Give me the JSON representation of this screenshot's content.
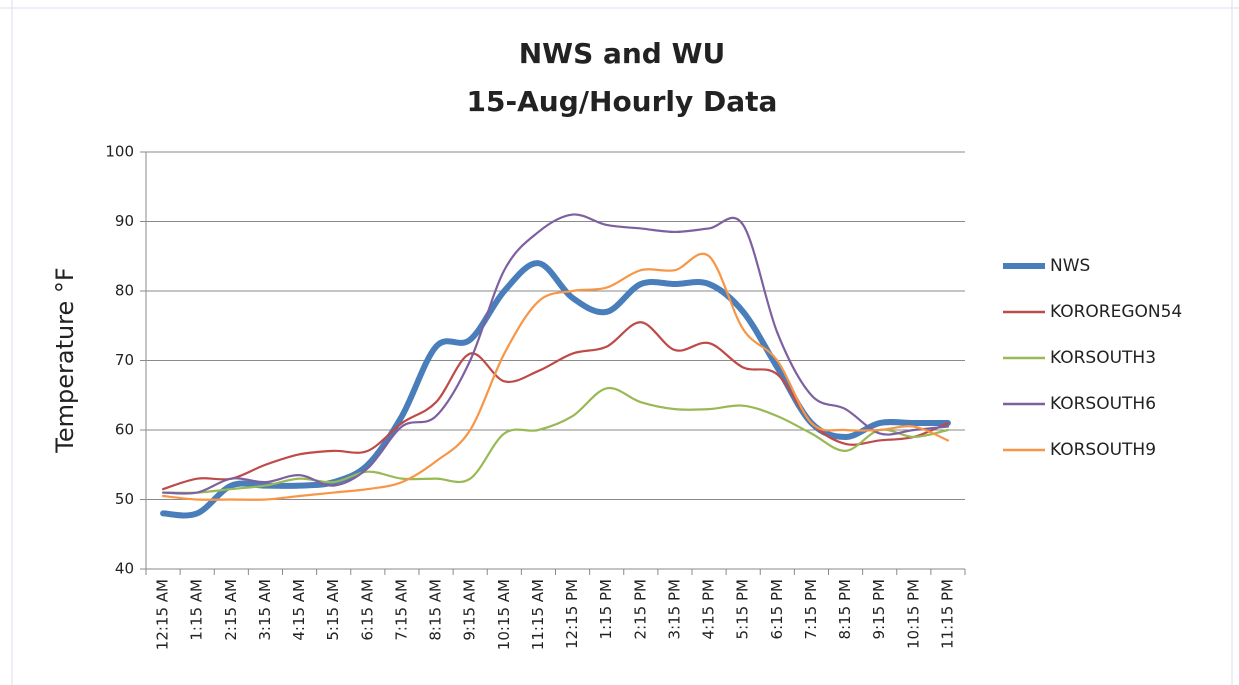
{
  "chart_data": {
    "type": "line",
    "title": [
      "NWS and WU",
      "15-Aug/Hourly Data"
    ],
    "y_label": "Temperature °F",
    "categories": [
      "12:15 AM",
      "1:15 AM",
      "2:15 AM",
      "3:15 AM",
      "4:15 AM",
      "5:15 AM",
      "6:15 AM",
      "7:15 AM",
      "8:15 AM",
      "9:15 AM",
      "10:15 AM",
      "11:15 AM",
      "12:15 PM",
      "1:15 PM",
      "2:15 PM",
      "3:15 PM",
      "4:15 PM",
      "5:15 PM",
      "6:15 PM",
      "7:15 PM",
      "8:15 PM",
      "9:15 PM",
      "10:15 PM",
      "11:15 PM"
    ],
    "series": [
      {
        "name": "NWS",
        "color": "#4a7ebb",
        "values": [
          48,
          48,
          52,
          52,
          52,
          52.5,
          55,
          62,
          72,
          73,
          80,
          84,
          79,
          77,
          81,
          81,
          81,
          77,
          69,
          61,
          59,
          61,
          61,
          61
        ]
      },
      {
        "name": "KOROREGON54",
        "color": "#be4b48",
        "values": [
          51.5,
          53,
          53,
          55,
          56.5,
          57,
          57,
          61,
          64,
          71,
          67,
          68.5,
          71,
          72,
          75.5,
          71.5,
          72.5,
          69,
          68,
          61,
          58,
          58.5,
          59,
          61
        ]
      },
      {
        "name": "KORSOUTH3",
        "color": "#98b954",
        "values": [
          51,
          51,
          51.5,
          52,
          53,
          52.5,
          54,
          53,
          53,
          53,
          59.5,
          60,
          62,
          66,
          64,
          63,
          63,
          63.5,
          62,
          59.5,
          57,
          60,
          59,
          60
        ]
      },
      {
        "name": "KORSOUTH6",
        "color": "#7d60a0",
        "values": [
          51,
          51,
          53,
          52.5,
          53.5,
          52,
          54.5,
          60.5,
          62,
          70,
          83,
          88.5,
          91,
          89.5,
          89,
          88.5,
          89,
          89.5,
          74,
          65,
          63,
          59.5,
          60,
          60.5
        ]
      },
      {
        "name": "KORSOUTH9",
        "color": "#f79646",
        "values": [
          50.5,
          50,
          50,
          50,
          50.5,
          51,
          51.5,
          52.5,
          55.5,
          60,
          71,
          78.5,
          80,
          80.5,
          83,
          83,
          85,
          74.5,
          70,
          61,
          60,
          60,
          60.5,
          58.5
        ]
      }
    ],
    "ylim": [
      40,
      100
    ],
    "yticks": [
      40,
      50,
      60,
      70,
      80,
      90,
      100
    ],
    "grid": true,
    "legend": "right",
    "smooth": true
  }
}
